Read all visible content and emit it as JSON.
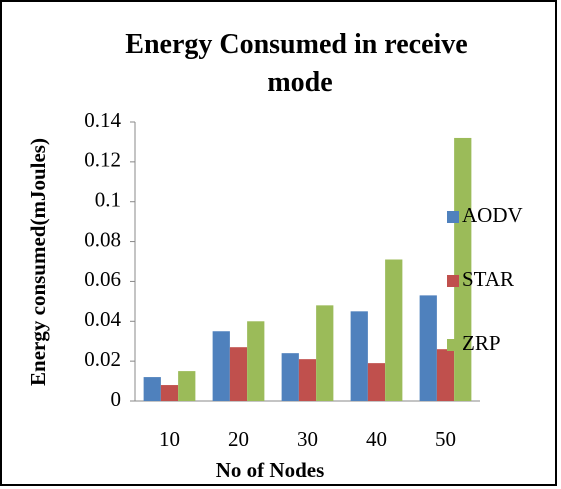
{
  "chart_data": {
    "type": "bar",
    "title": "Energy Consumed in receive mode",
    "x_label": "No of Nodes",
    "y_label": "Energy consumed(mJoules)",
    "categories": [
      "10",
      "20",
      "30",
      "40",
      "50"
    ],
    "series": [
      {
        "name": "AODV",
        "color": "#4f81bd",
        "values": [
          0.012,
          0.035,
          0.024,
          0.045,
          0.053
        ]
      },
      {
        "name": "STAR",
        "color": "#c0504d",
        "values": [
          0.008,
          0.027,
          0.021,
          0.019,
          0.026
        ]
      },
      {
        "name": "ZRP",
        "color": "#9bbb59",
        "values": [
          0.015,
          0.04,
          0.048,
          0.071,
          0.132
        ]
      }
    ],
    "ylim": [
      0,
      0.14
    ],
    "yticks": [
      0,
      0.02,
      0.04,
      0.06,
      0.08,
      0.1,
      0.12,
      0.14
    ],
    "grid": false,
    "legend": "right"
  }
}
